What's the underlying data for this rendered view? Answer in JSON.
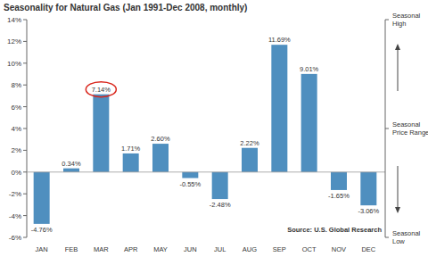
{
  "chart_data": {
    "type": "bar",
    "title": "Seasonality for Natural Gas (Jan 1991-Dec 2008, monthly)",
    "categories": [
      "JAN",
      "FEB",
      "MAR",
      "APR",
      "MAY",
      "JUN",
      "JUL",
      "AUG",
      "SEP",
      "OCT",
      "NOV",
      "DEC"
    ],
    "values": [
      -4.76,
      0.34,
      7.14,
      1.71,
      2.6,
      -0.55,
      -2.48,
      2.22,
      11.69,
      9.01,
      -1.65,
      -3.06
    ],
    "value_labels": [
      "-4.76%",
      "0.34%",
      "7.14%",
      "1.71%",
      "2.60%",
      "-0.55%",
      "-2.48%",
      "2.22%",
      "11.69%",
      "9.01%",
      "-1.65%",
      "-3.06%"
    ],
    "color": "#4f8fbf",
    "ylim": [
      -6,
      14
    ],
    "yticks": [
      {
        "value": -6,
        "label": "-6%"
      },
      {
        "value": -4,
        "label": "-4%"
      },
      {
        "value": -2,
        "label": "-2%"
      },
      {
        "value": 0,
        "label": "0%"
      },
      {
        "value": 2,
        "label": "2%"
      },
      {
        "value": 4,
        "label": "4%"
      },
      {
        "value": 6,
        "label": "6%"
      },
      {
        "value": 8,
        "label": "8%"
      },
      {
        "value": 10,
        "label": "10%"
      },
      {
        "value": 12,
        "label": "12%"
      },
      {
        "value": 14,
        "label": "14%"
      }
    ],
    "grid": false,
    "data_labels": true,
    "annotations": [
      "Seasonal High",
      "Seasonal Price Range",
      "Seasonal Low"
    ],
    "source": "Source: U.S. Global Research"
  }
}
